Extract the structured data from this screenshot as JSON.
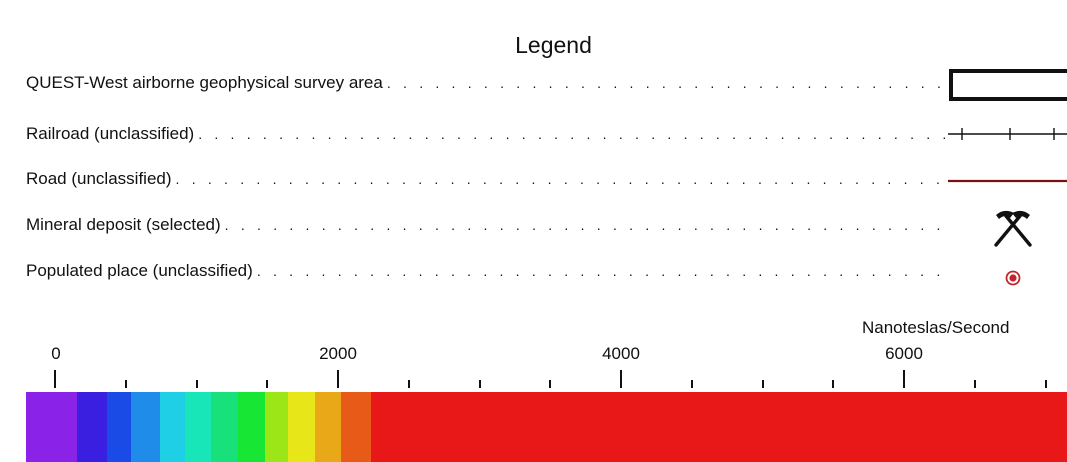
{
  "legend": {
    "title": "Legend",
    "items": [
      {
        "label": "QUEST-West airborne geophysical survey area",
        "symbol": "survey-area-rectangle",
        "color": "#111111"
      },
      {
        "label": "Railroad (unclassified)",
        "symbol": "railroad-line",
        "color": "#111111"
      },
      {
        "label": "Road (unclassified)",
        "symbol": "road-line",
        "color": "#7a1010"
      },
      {
        "label": "Mineral deposit (selected)",
        "symbol": "crossed-pickaxes-icon",
        "color": "#111111"
      },
      {
        "label": "Populated place (unclassified)",
        "symbol": "populated-place-icon",
        "color": "#c0262c"
      }
    ]
  },
  "scale": {
    "units": "Nanoteslas/Second",
    "major_labels": [
      "0",
      "2000",
      "4000",
      "6000"
    ],
    "ramp_colors": [
      "#8a22e8",
      "#3a1fe0",
      "#1a4be6",
      "#1e8ce8",
      "#1fcfe6",
      "#19e6b8",
      "#18e07a",
      "#18e634",
      "#9ce618",
      "#e6e618",
      "#e8a818",
      "#e85a18",
      "#e81818"
    ]
  }
}
